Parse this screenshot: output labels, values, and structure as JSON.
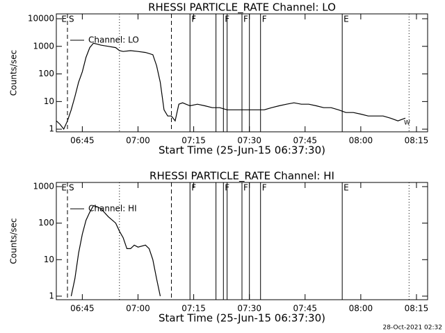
{
  "chart_data": [
    {
      "type": "line",
      "title": "RHESSI PARTICLE_RATE Channel: LO",
      "xlabel": "Start Time (25-Jun-15 06:37:30)",
      "ylabel": "Counts/sec",
      "log_y": true,
      "legend": "upper left",
      "xlim": [
        "06:38",
        "08:18"
      ],
      "xticks": [
        "06:45",
        "07:00",
        "07:15",
        "07:30",
        "07:45",
        "08:00",
        "08:15"
      ],
      "ylim": [
        0.8,
        15000
      ],
      "yticks": [
        1,
        10,
        100,
        1000,
        10000
      ],
      "x": [
        "06:38",
        "06:39",
        "06:40",
        "06:41",
        "06:42",
        "06:43",
        "06:44",
        "06:45",
        "06:46",
        "06:47",
        "06:48",
        "06:49",
        "06:50",
        "06:52",
        "06:54",
        "06:55",
        "06:56",
        "06:58",
        "07:00",
        "07:02",
        "07:04",
        "07:05",
        "07:06",
        "07:07",
        "07:08",
        "07:09",
        "07:10",
        "07:11",
        "07:12",
        "07:14",
        "07:16",
        "07:18",
        "07:20",
        "07:22",
        "07:24",
        "07:26",
        "07:28",
        "07:30",
        "07:32",
        "07:34",
        "07:36",
        "07:38",
        "07:40",
        "07:42",
        "07:44",
        "07:46",
        "07:48",
        "07:50",
        "07:52",
        "07:54",
        "07:56",
        "07:58",
        "08:00",
        "08:02",
        "08:04",
        "08:06",
        "08:08",
        "08:10",
        "08:12"
      ],
      "series": [
        {
          "name": "Channel: LO",
          "color": "#000000",
          "values": [
            2,
            1.5,
            1,
            2,
            5,
            15,
            50,
            120,
            400,
            900,
            1300,
            1200,
            1100,
            1000,
            900,
            700,
            650,
            700,
            650,
            600,
            500,
            200,
            50,
            5,
            3,
            3,
            2,
            8,
            9,
            7,
            8,
            7,
            6,
            6,
            5,
            5,
            5,
            5,
            5,
            5,
            6,
            7,
            8,
            9,
            8,
            8,
            7,
            6,
            6,
            5,
            4,
            4,
            3.5,
            3,
            3,
            3,
            2.5,
            2,
            2.5
          ]
        }
      ],
      "markers": [
        {
          "x": "06:39",
          "style": "none",
          "label": "E"
        },
        {
          "x": "06:41",
          "style": "dashed",
          "label": "S"
        },
        {
          "x": "06:55",
          "style": "dotted"
        },
        {
          "x": "07:09",
          "style": "dashed"
        },
        {
          "x": "07:14",
          "style": "solid",
          "label": "F"
        },
        {
          "x": "07:21",
          "style": "solid"
        },
        {
          "x": "07:23",
          "style": "solid",
          "label": "F"
        },
        {
          "x": "07:24",
          "style": "solid"
        },
        {
          "x": "07:28",
          "style": "solid",
          "label": "F"
        },
        {
          "x": "07:30",
          "style": "solid"
        },
        {
          "x": "07:33",
          "style": "solid",
          "label": "F"
        },
        {
          "x": "07:55",
          "style": "solid",
          "label": "E"
        },
        {
          "x": "08:13",
          "style": "dotted"
        }
      ],
      "corner_note": "W"
    },
    {
      "type": "line",
      "title": "RHESSI PARTICLE_RATE Channel: HI",
      "xlabel": "Start Time (25-Jun-15 06:37:30)",
      "ylabel": "Counts/sec",
      "log_y": true,
      "legend": "upper left",
      "xlim": [
        "06:38",
        "08:18"
      ],
      "xticks": [
        "06:45",
        "07:00",
        "07:15",
        "07:30",
        "07:45",
        "08:00",
        "08:15"
      ],
      "ylim": [
        0.8,
        1300
      ],
      "yticks": [
        1,
        10,
        100,
        1000
      ],
      "x": [
        "06:42",
        "06:43",
        "06:44",
        "06:45",
        "06:46",
        "06:47",
        "06:48",
        "06:49",
        "06:50",
        "06:52",
        "06:54",
        "06:55",
        "06:56",
        "06:57",
        "06:58",
        "06:59",
        "07:00",
        "07:02",
        "07:03",
        "07:04",
        "07:05",
        "07:06"
      ],
      "series": [
        {
          "name": "Channel: HI",
          "color": "#000000",
          "values": [
            1,
            3,
            15,
            50,
            120,
            200,
            300,
            280,
            250,
            150,
            100,
            60,
            40,
            20,
            20,
            25,
            22,
            25,
            20,
            10,
            3,
            1
          ]
        }
      ],
      "markers": [
        {
          "x": "06:39",
          "style": "none",
          "label": "E"
        },
        {
          "x": "06:41",
          "style": "dashed",
          "label": "S"
        },
        {
          "x": "06:55",
          "style": "dotted"
        },
        {
          "x": "07:09",
          "style": "dashed"
        },
        {
          "x": "07:14",
          "style": "solid",
          "label": "F"
        },
        {
          "x": "07:21",
          "style": "solid"
        },
        {
          "x": "07:23",
          "style": "solid",
          "label": "F"
        },
        {
          "x": "07:24",
          "style": "solid"
        },
        {
          "x": "07:28",
          "style": "solid",
          "label": "F"
        },
        {
          "x": "07:30",
          "style": "solid"
        },
        {
          "x": "07:33",
          "style": "solid",
          "label": "F"
        },
        {
          "x": "07:55",
          "style": "solid",
          "label": "E"
        },
        {
          "x": "08:13",
          "style": "dotted"
        }
      ]
    }
  ],
  "footer": "28-Oct-2021 02:32"
}
